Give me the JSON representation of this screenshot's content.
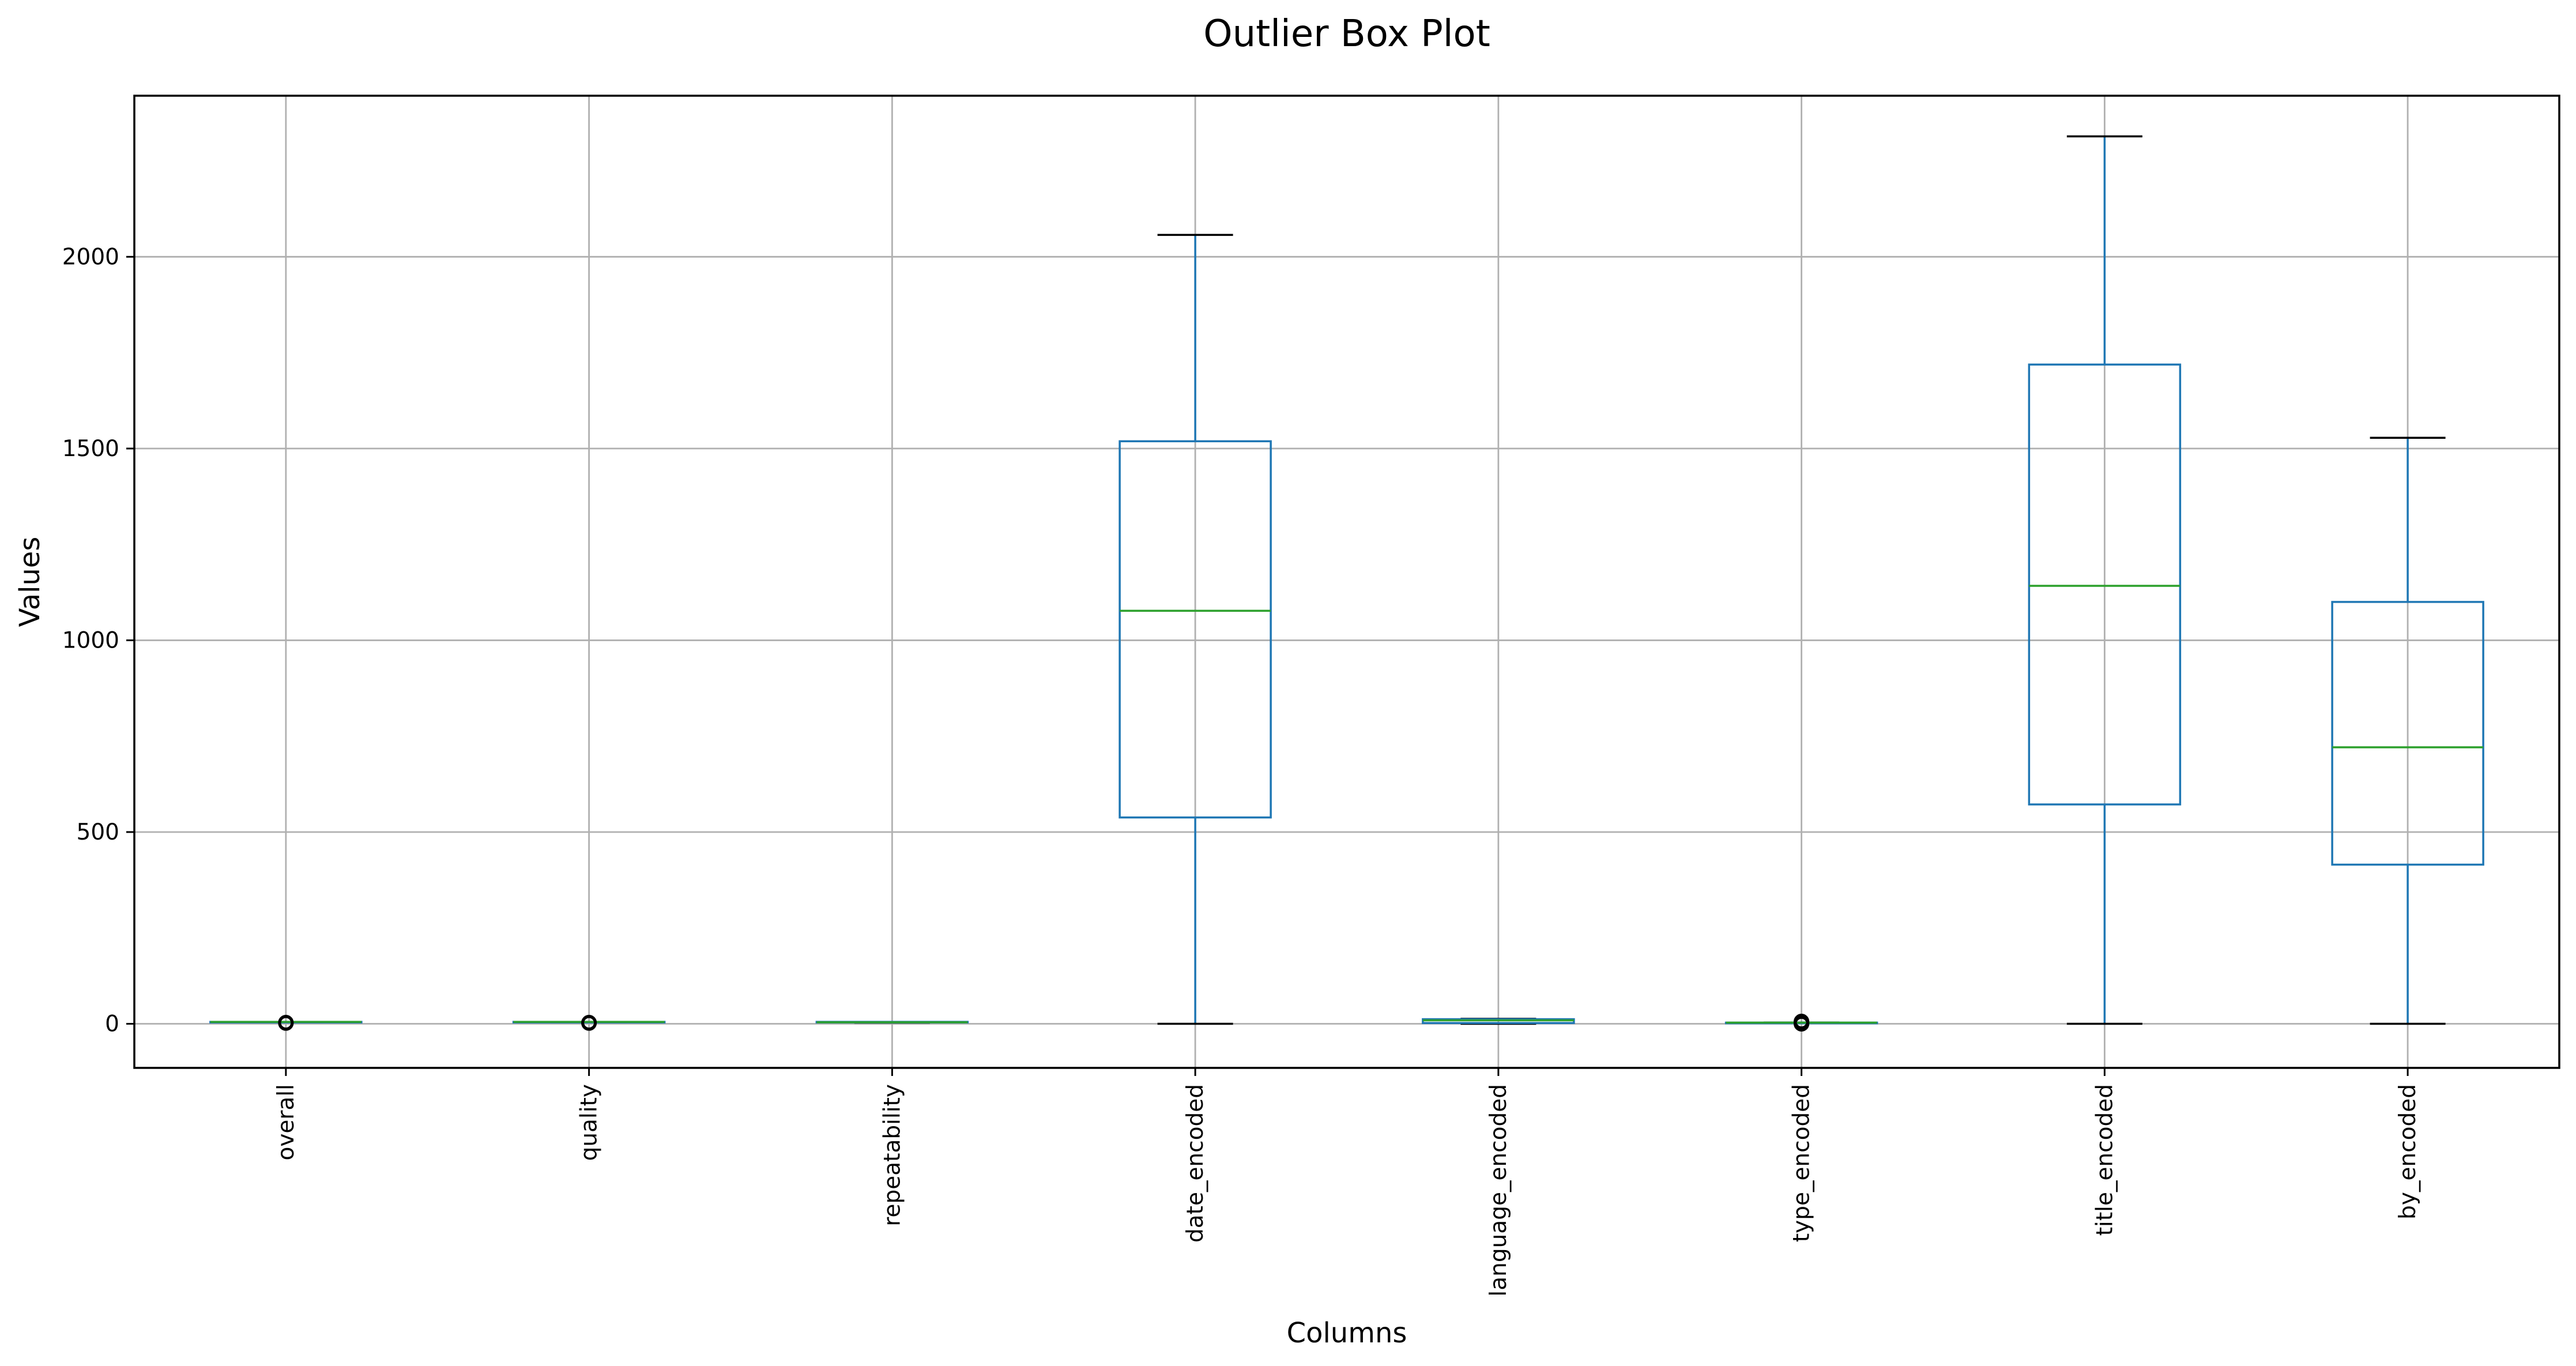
{
  "chart_data": {
    "type": "box",
    "title": "Outlier Box Plot",
    "xlabel": "Columns",
    "ylabel": "Values",
    "ylim": [
      -115,
      2420
    ],
    "yticks": [
      0,
      500,
      1000,
      1500,
      2000
    ],
    "grid": true,
    "colors": {
      "box": "#1f77b4",
      "median": "#2ca02c",
      "cap": "#000000",
      "flier": "#000000",
      "grid": "#b0b0b0"
    },
    "categories": [
      "overall",
      "quality",
      "repeatability",
      "date_encoded",
      "language_encoded",
      "type_encoded",
      "title_encoded",
      "by_encoded"
    ],
    "boxes": [
      {
        "name": "overall",
        "whislo": 4,
        "q1": 4,
        "med": 5,
        "q3": 5,
        "whishi": 5,
        "fliers": [
          2,
          3
        ]
      },
      {
        "name": "quality",
        "whislo": 4,
        "q1": 4,
        "med": 5,
        "q3": 5,
        "whishi": 5,
        "fliers": [
          2,
          3
        ]
      },
      {
        "name": "repeatability",
        "whislo": 3,
        "q1": 4,
        "med": 4,
        "q3": 5,
        "whishi": 5,
        "fliers": []
      },
      {
        "name": "date_encoded",
        "whislo": 0,
        "q1": 538,
        "med": 1077,
        "q3": 1519,
        "whishi": 2057,
        "fliers": []
      },
      {
        "name": "language_encoded",
        "whislo": 0,
        "q1": 2,
        "med": 9,
        "q3": 12,
        "whishi": 13,
        "fliers": []
      },
      {
        "name": "type_encoded",
        "whislo": 3,
        "q1": 3,
        "med": 3,
        "q3": 3,
        "whishi": 3,
        "fliers": [
          0,
          1,
          5,
          6
        ]
      },
      {
        "name": "title_encoded",
        "whislo": 0,
        "q1": 572,
        "med": 1142,
        "q3": 1719,
        "whishi": 2314,
        "fliers": []
      },
      {
        "name": "by_encoded",
        "whislo": 0,
        "q1": 415,
        "med": 721,
        "q3": 1100,
        "whishi": 1528,
        "fliers": []
      }
    ]
  }
}
